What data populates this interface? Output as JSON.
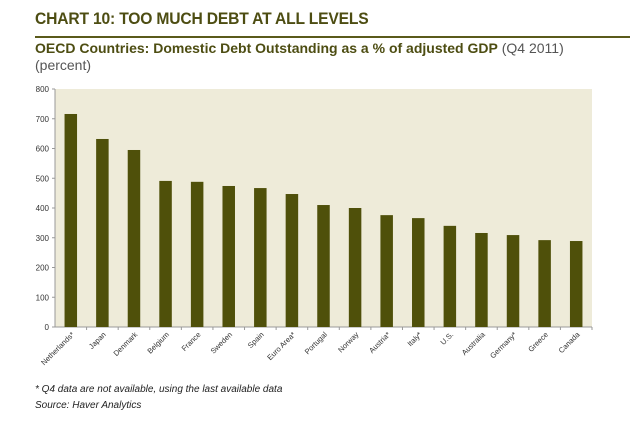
{
  "header": {
    "title": "CHART 10: TOO MUCH DEBT AT ALL LEVELS",
    "subtitle_bold": "OECD Countries: Domestic Debt Outstanding as a % of adjusted GDP",
    "subtitle_period": "(Q4 2011)",
    "subtitle_unit": "(percent)"
  },
  "notes": {
    "footnote": "* Q4 data are not available, using the last available data",
    "source": "Source: Haver Analytics"
  },
  "chart_data": {
    "type": "bar",
    "title": "OECD Countries: Domestic Debt Outstanding as a % of adjusted GDP (Q4 2011)",
    "ylabel": "(percent)",
    "ylim": [
      0,
      800
    ],
    "yticks": [
      0,
      100,
      200,
      300,
      400,
      500,
      600,
      700,
      800
    ],
    "grid": false,
    "categories": [
      "Netherlands*",
      "Japan",
      "Denmark",
      "Belgium",
      "France",
      "Sweden",
      "Spain",
      "Euro Area*",
      "Portugal",
      "Norway",
      "Austria*",
      "Italy*",
      "U.S.",
      "Australia",
      "Germany*",
      "Greece",
      "Canada"
    ],
    "values": [
      716,
      632,
      595,
      491,
      488,
      474,
      467,
      447,
      410,
      400,
      376,
      366,
      340,
      316,
      309,
      292,
      289
    ],
    "colors": {
      "bar": "#4f500a",
      "plot_bg": "#eeebd9",
      "title": "#4d4d12"
    }
  }
}
